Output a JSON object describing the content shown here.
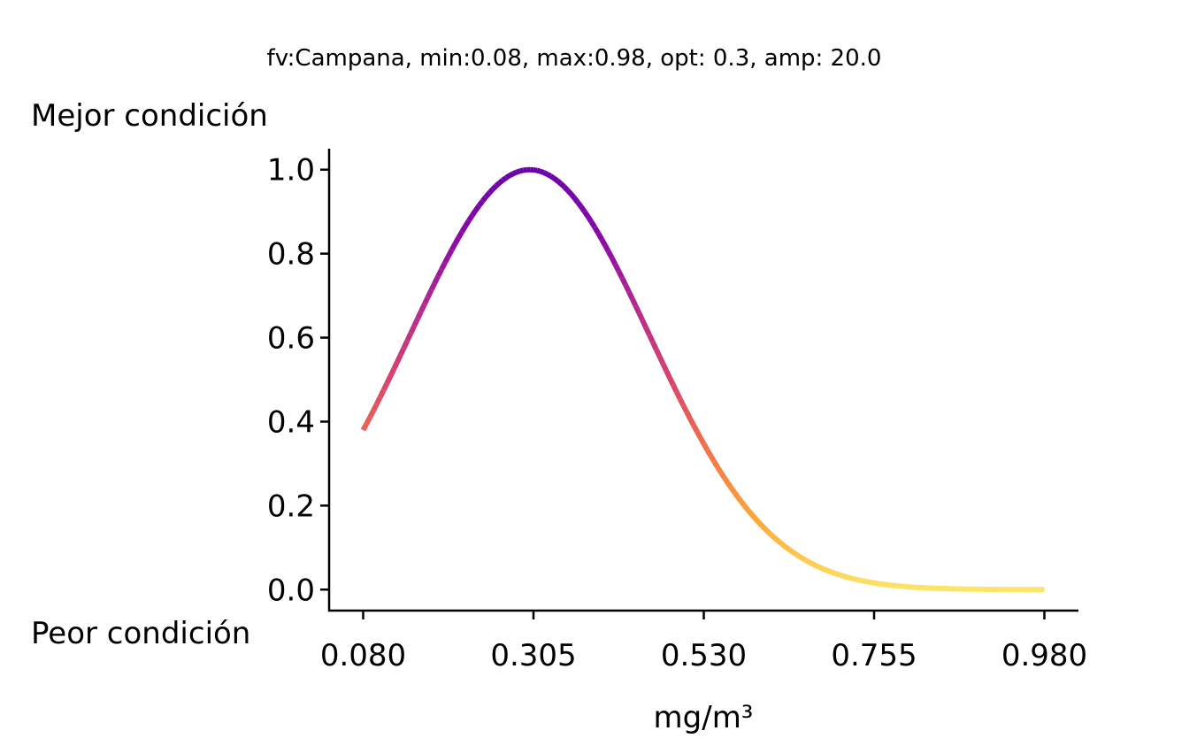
{
  "chart_data": {
    "type": "line",
    "title": "fv:Campana, min:0.08, max:0.98, opt: 0.3, amp: 20.0",
    "xlabel": "mg/m³",
    "ylabel": "",
    "top_label": "Mejor condición",
    "bottom_label": "Peor condición",
    "function": "bell",
    "min": 0.08,
    "max": 0.98,
    "opt": 0.3,
    "amp": 20.0,
    "xlim": [
      0.035,
      1.025
    ],
    "ylim": [
      -0.05,
      1.05
    ],
    "x_ticks": [
      0.08,
      0.305,
      0.53,
      0.755,
      0.98
    ],
    "x_tick_labels": [
      "0.080",
      "0.305",
      "0.530",
      "0.755",
      "0.980"
    ],
    "y_ticks": [
      0.0,
      0.2,
      0.4,
      0.6,
      0.8,
      1.0
    ],
    "y_tick_labels": [
      "0.0",
      "0.2",
      "0.4",
      "0.6",
      "0.8",
      "1.0"
    ],
    "colormap": [
      "#fde466",
      "#fca636",
      "#f0734b",
      "#d8426b",
      "#b52c8f",
      "#8b0aa5",
      "#6a00a8"
    ],
    "grid": false
  }
}
